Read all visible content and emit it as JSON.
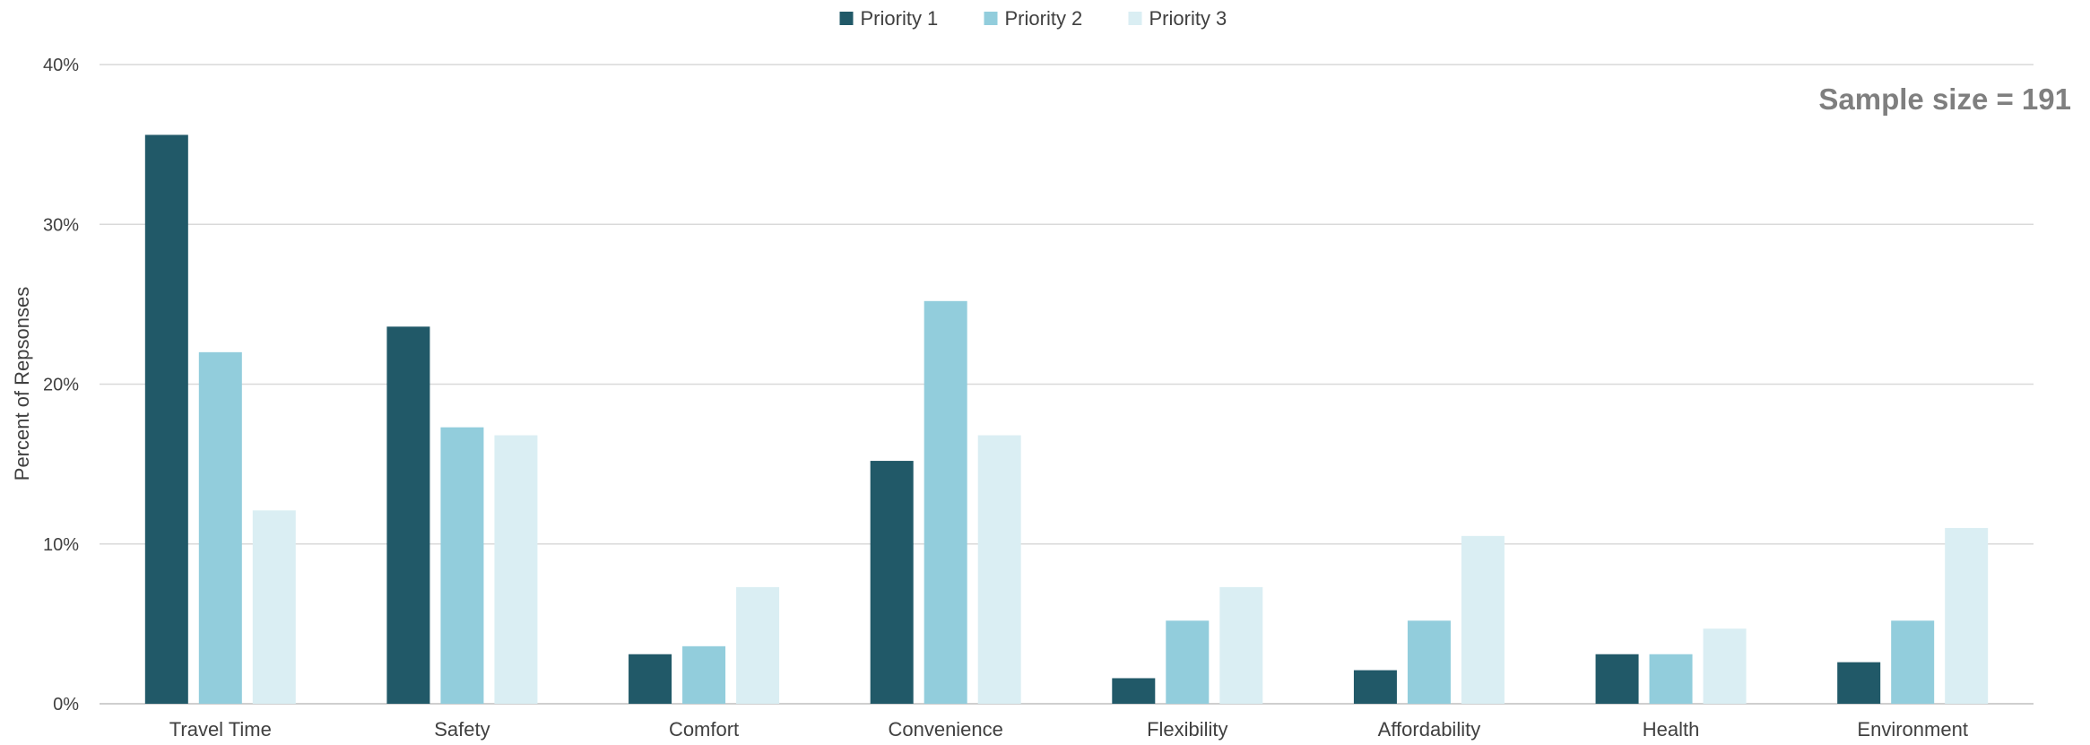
{
  "chart_data": {
    "type": "bar",
    "categories": [
      "Travel Time",
      "Safety",
      "Comfort",
      "Convenience",
      "Flexibility",
      "Affordability",
      "Health",
      "Environment"
    ],
    "series": [
      {
        "name": "Priority 1",
        "color": "#215968",
        "values": [
          35.6,
          23.6,
          3.1,
          15.2,
          1.6,
          2.1,
          3.1,
          2.6
        ]
      },
      {
        "name": "Priority 2",
        "color": "#92CDDC",
        "values": [
          22.0,
          17.3,
          3.6,
          25.2,
          5.2,
          5.2,
          3.1,
          5.2
        ]
      },
      {
        "name": "Priority 3",
        "color": "#DAEEF3",
        "values": [
          12.1,
          16.8,
          7.3,
          16.8,
          7.3,
          10.5,
          4.7,
          11.0
        ]
      }
    ],
    "ylabel": "Percent of Repsonses",
    "ylim": [
      0,
      40
    ],
    "yticks": [
      0,
      10,
      20,
      30,
      40
    ],
    "ytick_labels": [
      "0%",
      "10%",
      "20%",
      "30%",
      "40%"
    ],
    "annotation": "Sample size = 191",
    "legend_position": "top-center",
    "grid": true
  }
}
